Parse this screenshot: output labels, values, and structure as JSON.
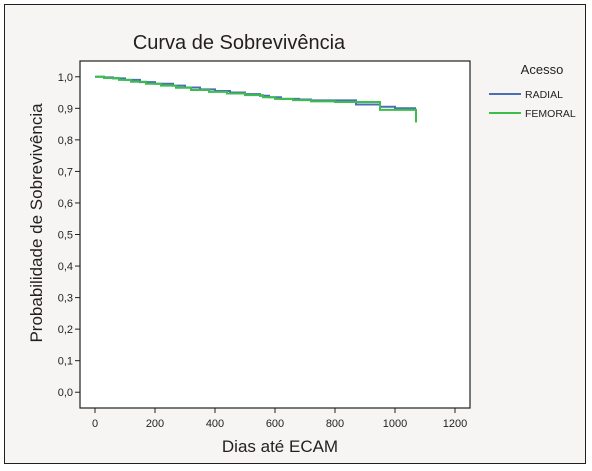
{
  "chart_data": {
    "type": "line",
    "title": "Curva de Sobrevivência",
    "xlabel": "Dias até ECAM",
    "ylabel": "Probabilidade de Sobrevivência",
    "xlim": [
      -50,
      1250
    ],
    "ylim": [
      -0.05,
      1.05
    ],
    "x_ticks": [
      0,
      200,
      400,
      600,
      800,
      1000,
      1200
    ],
    "x_tick_labels": [
      "0",
      "200",
      "400",
      "600",
      "800",
      "1000",
      "1200"
    ],
    "y_ticks": [
      0.0,
      0.1,
      0.2,
      0.3,
      0.4,
      0.5,
      0.6,
      0.7,
      0.8,
      0.9,
      1.0
    ],
    "y_tick_labels": [
      "0,0",
      "0,1",
      "0,2",
      "0,3",
      "0,4",
      "0,5",
      "0,6",
      "0,7",
      "0,8",
      "0,9",
      "1,0"
    ],
    "grid": false,
    "step": true,
    "legend": {
      "title": "Acesso",
      "placement": "right"
    },
    "series": [
      {
        "name": "RADIAL",
        "color": "#4a6fb5",
        "x": [
          0,
          30,
          60,
          100,
          150,
          200,
          260,
          300,
          350,
          400,
          450,
          500,
          550,
          580,
          620,
          680,
          720,
          800,
          870,
          950,
          1000,
          1070
        ],
        "y": [
          1.0,
          0.998,
          0.995,
          0.99,
          0.983,
          0.978,
          0.972,
          0.966,
          0.96,
          0.955,
          0.95,
          0.945,
          0.94,
          0.935,
          0.93,
          0.928,
          0.925,
          0.925,
          0.912,
          0.905,
          0.9,
          0.9
        ]
      },
      {
        "name": "FEMORAL",
        "color": "#3cbf4a",
        "x": [
          0,
          30,
          80,
          120,
          170,
          220,
          270,
          320,
          380,
          440,
          500,
          560,
          600,
          660,
          720,
          800,
          870,
          950,
          1000,
          1060,
          1070
        ],
        "y": [
          1.0,
          0.996,
          0.99,
          0.984,
          0.978,
          0.972,
          0.965,
          0.958,
          0.952,
          0.947,
          0.942,
          0.935,
          0.93,
          0.926,
          0.922,
          0.92,
          0.92,
          0.895,
          0.895,
          0.895,
          0.855
        ]
      }
    ]
  }
}
